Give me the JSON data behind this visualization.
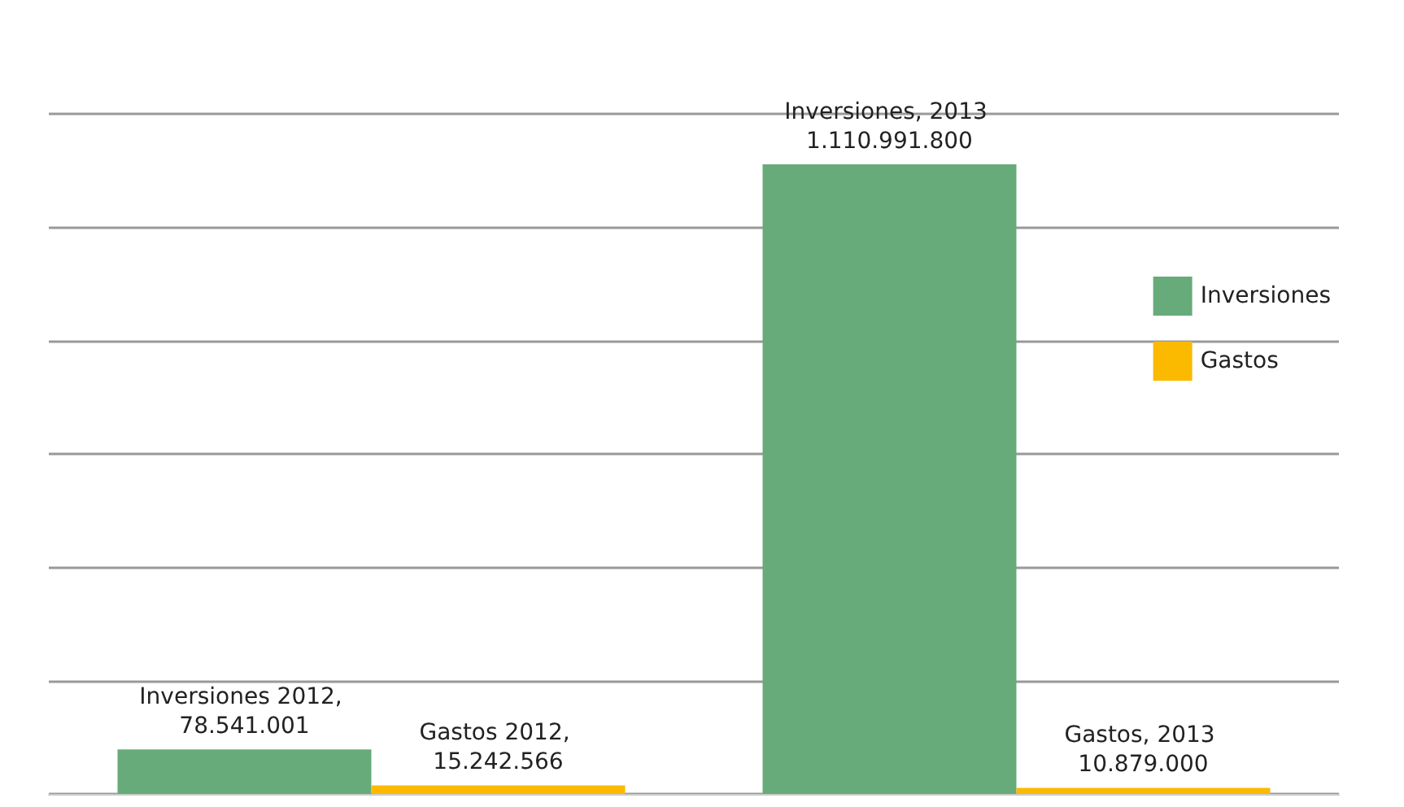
{
  "chart_data": {
    "type": "bar",
    "categories": [
      null,
      null
    ],
    "series": [
      {
        "name": "Inversiones",
        "color": "#66ab79",
        "values": [
          78541001,
          1110991800
        ],
        "value_labels": [
          "Inversiones 2012, 78.541.001",
          "Inversiones, 2013 1.110.991.800"
        ]
      },
      {
        "name": "Gastos",
        "color": "#fbb900",
        "values": [
          15242566,
          10879000
        ],
        "value_labels": [
          "Gastos 2012, 15.242.566",
          "Gastos, 2013 10.879.000"
        ]
      }
    ],
    "grid": "y",
    "legend": "right"
  }
}
